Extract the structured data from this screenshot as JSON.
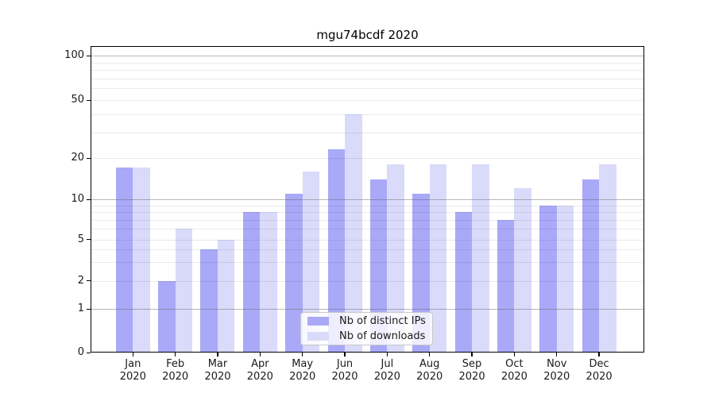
{
  "chart_data": {
    "type": "bar",
    "title": "mgu74bcdf 2020",
    "categories": [
      {
        "month": "Jan",
        "year": "2020"
      },
      {
        "month": "Feb",
        "year": "2020"
      },
      {
        "month": "Mar",
        "year": "2020"
      },
      {
        "month": "Apr",
        "year": "2020"
      },
      {
        "month": "May",
        "year": "2020"
      },
      {
        "month": "Jun",
        "year": "2020"
      },
      {
        "month": "Jul",
        "year": "2020"
      },
      {
        "month": "Aug",
        "year": "2020"
      },
      {
        "month": "Sep",
        "year": "2020"
      },
      {
        "month": "Oct",
        "year": "2020"
      },
      {
        "month": "Nov",
        "year": "2020"
      },
      {
        "month": "Dec",
        "year": "2020"
      }
    ],
    "series": [
      {
        "name": "Nb of distinct IPs",
        "color": "#a9a9f8",
        "values": [
          17,
          2,
          4,
          8,
          11,
          23,
          14,
          11,
          8,
          7,
          9,
          14
        ]
      },
      {
        "name": "Nb of downloads",
        "color": "#dadafa",
        "values": [
          17,
          6,
          5,
          8,
          16,
          40,
          18,
          18,
          18,
          12,
          9,
          18
        ]
      }
    ],
    "xlabel": "",
    "ylabel": "",
    "ylim": [
      0,
      115
    ],
    "y_axis": {
      "scale": "log-like",
      "tick_labels": [
        "100",
        "50",
        "20",
        "10",
        "5",
        "2",
        "1",
        "0"
      ],
      "dark_gridlines": [
        1,
        10,
        100
      ],
      "light_gridlines": [
        2,
        5,
        20,
        50
      ],
      "minor_gridlines": [
        3,
        4,
        6,
        7,
        8,
        9,
        30,
        40,
        60,
        70,
        80,
        90
      ]
    },
    "grid": "horizontal, drawn over bars",
    "legend_position": "inside-bottom-center"
  }
}
